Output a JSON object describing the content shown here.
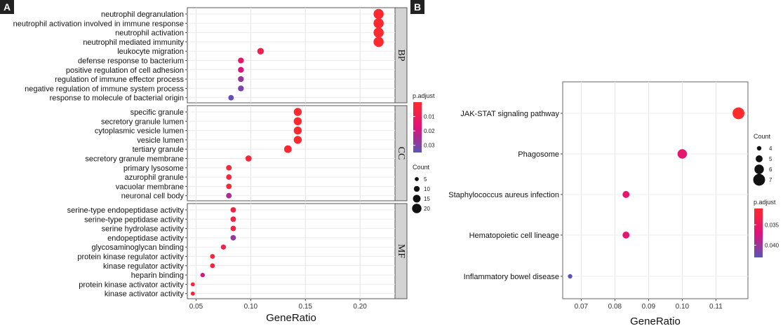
{
  "chart_data": [
    {
      "panel_label": "A",
      "type": "scatter",
      "xlabel": "GeneRatio",
      "x_ticks": [
        "0.05",
        "0.10",
        "0.15",
        "0.20"
      ],
      "xlim": [
        0.042,
        0.232
      ],
      "size_legend": {
        "title": "Count",
        "values": [
          5,
          10,
          15,
          20
        ]
      },
      "color_legend": {
        "title": "p.adjust",
        "ticks": [
          "0.01",
          "0.02",
          "0.03"
        ],
        "colors": [
          "#ff2a2a",
          "#e0127a",
          "#5a55b5"
        ]
      },
      "facets": [
        {
          "name": "BP",
          "terms": [
            "neutrophil degranulation",
            "neutrophil activation involved in immune response",
            "neutrophil activation",
            "neutrophil mediated immunity",
            "leukocyte migration",
            "defense response to bacterium",
            "positive regulation of cell adhesion",
            "regulation of immune effector process",
            "negative regulation of immune system process",
            "response to molecule of bacterial origin"
          ],
          "x": [
            0.217,
            0.217,
            0.217,
            0.217,
            0.109,
            0.091,
            0.091,
            0.091,
            0.091,
            0.082
          ],
          "count": [
            22,
            22,
            22,
            22,
            12,
            10,
            10,
            10,
            10,
            9
          ],
          "p_adjust": [
            0.001,
            0.001,
            0.001,
            0.001,
            0.008,
            0.014,
            0.018,
            0.027,
            0.031,
            0.034
          ]
        },
        {
          "name": "CC",
          "terms": [
            "specific granule",
            "secretory granule lumen",
            "cytoplasmic vesicle lumen",
            "vesicle lumen",
            "tertiary granule",
            "secretory granule membrane",
            "primary lysosome",
            "azurophil granule",
            "vacuolar membrane",
            "neuronal cell body"
          ],
          "x": [
            0.143,
            0.143,
            0.143,
            0.143,
            0.134,
            0.098,
            0.08,
            0.08,
            0.08,
            0.08
          ],
          "count": [
            16,
            16,
            16,
            16,
            15,
            11,
            9,
            9,
            9,
            9
          ],
          "p_adjust": [
            0.001,
            0.001,
            0.001,
            0.001,
            0.002,
            0.003,
            0.004,
            0.004,
            0.004,
            0.024
          ]
        },
        {
          "name": "MF",
          "terms": [
            "serine-type endopeptidase activity",
            "serine-type peptidase activity",
            "serine hydrolase activity",
            "endopeptidase activity",
            "glycosaminoglycan binding",
            "protein kinase regulator activity",
            "kinase regulator activity",
            "heparin binding",
            "protein kinase activator activity",
            "kinase activator activity"
          ],
          "x": [
            0.084,
            0.084,
            0.084,
            0.084,
            0.075,
            0.065,
            0.065,
            0.056,
            0.047,
            0.047
          ],
          "count": [
            9,
            9,
            9,
            9,
            8,
            7,
            7,
            6,
            5,
            5
          ],
          "p_adjust": [
            0.006,
            0.006,
            0.006,
            0.028,
            0.007,
            0.004,
            0.004,
            0.018,
            0.004,
            0.004
          ]
        }
      ]
    },
    {
      "panel_label": "B",
      "type": "scatter",
      "xlabel": "GeneRatio",
      "x_ticks": [
        "0.07",
        "0.08",
        "0.09",
        "0.10",
        "0.11"
      ],
      "xlim": [
        0.0645,
        0.1195
      ],
      "size_legend": {
        "title": "Count",
        "values": [
          4,
          5,
          6,
          7
        ]
      },
      "color_legend": {
        "title": "p.adjust",
        "ticks": [
          "0.035",
          "0.040"
        ],
        "colors": [
          "#ff2a2a",
          "#e0127a",
          "#5a55b5"
        ]
      },
      "terms": [
        "JAK-STAT signaling pathway",
        "Phagosome",
        "Staphylococcus aureus infection",
        "Hematopoietic cell lineage",
        "Inflammatory bowel disease"
      ],
      "x": [
        0.1167,
        0.1,
        0.0833,
        0.0833,
        0.0667
      ],
      "count": [
        7,
        6,
        5,
        5,
        4
      ],
      "p_adjust": [
        0.031,
        0.036,
        0.036,
        0.036,
        0.043
      ]
    }
  ]
}
